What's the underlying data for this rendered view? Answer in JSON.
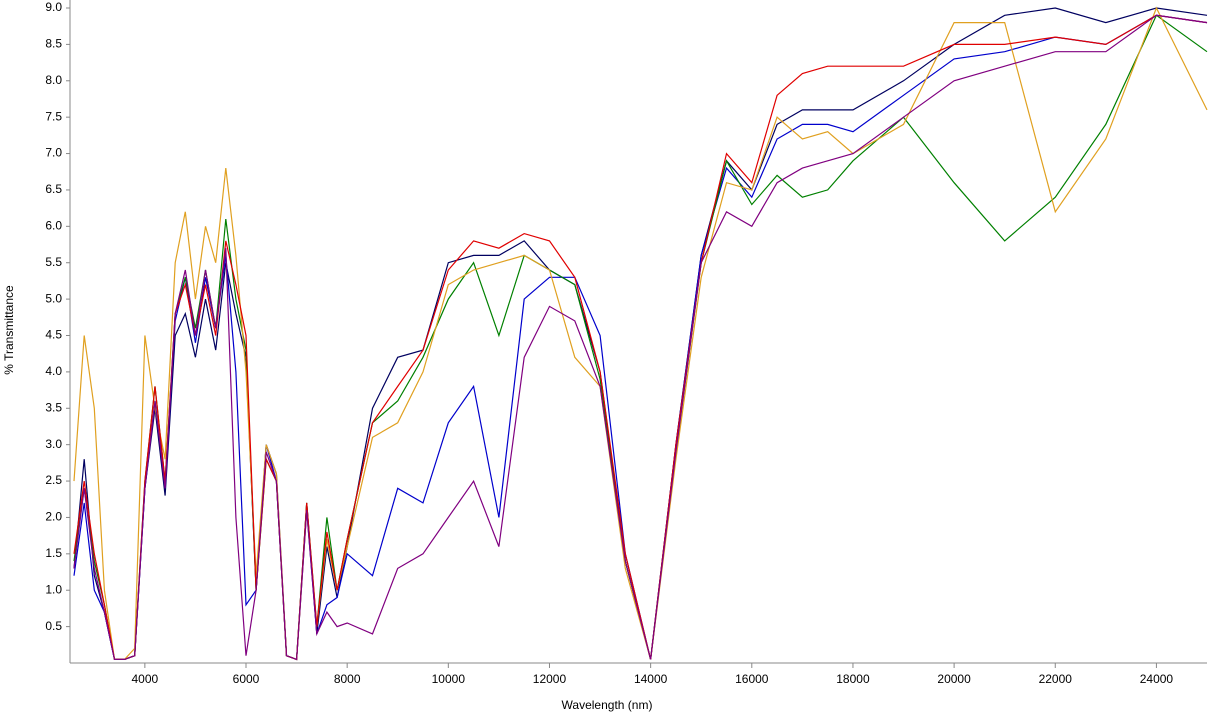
{
  "chart_data": {
    "type": "line",
    "x_label": "Wavelength (nm)",
    "y_label": "% Transmittance",
    "x": [
      2600,
      2800,
      3000,
      3200,
      3400,
      3600,
      3800,
      4000,
      4200,
      4400,
      4600,
      4800,
      5000,
      5200,
      5400,
      5600,
      5800,
      6000,
      6200,
      6400,
      6600,
      6800,
      7000,
      7200,
      7400,
      7600,
      7800,
      8000,
      8500,
      9000,
      9500,
      10000,
      10500,
      11000,
      11500,
      12000,
      12500,
      13000,
      13500,
      14000,
      14500,
      15000,
      15500,
      16000,
      16500,
      17000,
      17500,
      18000,
      19000,
      20000,
      21000,
      22000,
      23000,
      24000,
      25000
    ],
    "series": [
      {
        "color": "#000060",
        "values": [
          1.3,
          2.8,
          1.2,
          0.7,
          0.05,
          0.05,
          0.1,
          2.4,
          3.5,
          2.3,
          4.5,
          4.8,
          4.2,
          5.0,
          4.3,
          5.5,
          4.8,
          4.2,
          1.0,
          3.0,
          2.6,
          0.1,
          0.05,
          2.2,
          0.4,
          1.6,
          0.9,
          1.6,
          3.5,
          4.2,
          4.3,
          5.5,
          5.6,
          5.6,
          5.8,
          5.4,
          5.2,
          4.0,
          1.4,
          0.05,
          3.0,
          5.6,
          6.9,
          6.5,
          7.4,
          7.6,
          7.6,
          7.6,
          8.0,
          8.5,
          8.9,
          9.0,
          8.8,
          9.0,
          8.9
        ]
      },
      {
        "color": "#0000cc",
        "values": [
          1.2,
          2.2,
          1.0,
          0.7,
          0.05,
          0.05,
          0.1,
          2.4,
          3.6,
          2.4,
          4.7,
          5.3,
          4.4,
          5.3,
          4.6,
          5.6,
          4.0,
          0.8,
          1.0,
          3.0,
          2.5,
          0.1,
          0.05,
          2.1,
          0.4,
          0.8,
          0.9,
          1.5,
          1.2,
          2.4,
          2.2,
          3.3,
          3.8,
          2.0,
          5.0,
          5.3,
          5.3,
          4.5,
          1.5,
          0.05,
          3.0,
          5.6,
          6.8,
          6.4,
          7.2,
          7.4,
          7.4,
          7.3,
          7.8,
          8.3,
          8.4,
          8.6,
          8.5,
          8.9,
          8.8
        ]
      },
      {
        "color": "#008000",
        "values": [
          1.4,
          2.4,
          1.4,
          0.8,
          0.05,
          0.05,
          0.1,
          2.5,
          3.8,
          2.5,
          4.8,
          5.3,
          4.6,
          5.4,
          4.6,
          6.1,
          5.0,
          4.3,
          1.0,
          2.8,
          2.5,
          0.1,
          0.05,
          2.2,
          0.5,
          2.0,
          1.0,
          1.7,
          3.3,
          3.6,
          4.2,
          5.0,
          5.5,
          4.5,
          5.6,
          5.4,
          5.2,
          3.9,
          1.4,
          0.05,
          2.9,
          5.5,
          6.9,
          6.3,
          6.7,
          6.4,
          6.5,
          6.9,
          7.5,
          6.6,
          5.8,
          6.4,
          7.4,
          8.9,
          8.4
        ]
      },
      {
        "color": "#e0a020",
        "values": [
          2.5,
          4.5,
          3.5,
          1.0,
          0.05,
          0.05,
          0.2,
          4.5,
          3.5,
          2.8,
          5.5,
          6.2,
          5.0,
          6.0,
          5.5,
          6.8,
          5.6,
          4.0,
          1.2,
          3.0,
          2.6,
          0.1,
          0.05,
          2.1,
          0.5,
          1.7,
          1.0,
          1.6,
          3.1,
          3.3,
          4.0,
          5.2,
          5.4,
          5.5,
          5.6,
          5.4,
          4.2,
          3.8,
          1.3,
          0.05,
          2.8,
          5.3,
          6.6,
          6.5,
          7.5,
          7.2,
          7.3,
          7.0,
          7.4,
          8.8,
          8.8,
          6.2,
          7.2,
          9.0,
          7.6
        ]
      },
      {
        "color": "#e00000",
        "values": [
          1.5,
          2.5,
          1.5,
          0.8,
          0.05,
          0.05,
          0.1,
          2.5,
          3.8,
          2.5,
          4.8,
          5.2,
          4.5,
          5.2,
          4.5,
          5.8,
          5.2,
          4.5,
          1.0,
          2.8,
          2.5,
          0.1,
          0.05,
          2.2,
          0.5,
          1.8,
          1.0,
          1.7,
          3.3,
          3.8,
          4.3,
          5.4,
          5.8,
          5.7,
          5.9,
          5.8,
          5.3,
          4.0,
          1.5,
          0.05,
          3.0,
          5.5,
          7.0,
          6.6,
          7.8,
          8.1,
          8.2,
          8.2,
          8.2,
          8.5,
          8.5,
          8.6,
          8.5,
          8.9,
          8.8
        ]
      },
      {
        "color": "#800080",
        "values": [
          1.3,
          2.4,
          1.3,
          0.7,
          0.05,
          0.05,
          0.1,
          2.4,
          3.6,
          2.4,
          4.8,
          5.4,
          4.5,
          5.4,
          4.6,
          5.7,
          2.0,
          0.1,
          1.0,
          2.9,
          2.5,
          0.1,
          0.05,
          2.1,
          0.4,
          0.7,
          0.5,
          0.55,
          0.4,
          1.3,
          1.5,
          2.0,
          2.5,
          1.6,
          4.2,
          4.9,
          4.7,
          3.8,
          1.4,
          0.05,
          2.9,
          5.5,
          6.2,
          6.0,
          6.6,
          6.8,
          6.9,
          7.0,
          7.5,
          8.0,
          8.2,
          8.4,
          8.4,
          8.9,
          8.8
        ]
      }
    ],
    "xlim": [
      2520,
      25000
    ],
    "xticks": [
      4000,
      6000,
      8000,
      10000,
      12000,
      14000,
      16000,
      18000,
      20000,
      22000,
      24000
    ],
    "ylim": [
      0,
      9.0
    ],
    "yticks": [
      0.5,
      {
        "value": 1,
        "label": "1.0"
      },
      1.5,
      {
        "value": 2,
        "label": "2.0"
      },
      2.5,
      {
        "value": 3,
        "label": "3.0"
      },
      3.5,
      {
        "value": 4,
        "label": "4.0"
      },
      4.5,
      {
        "value": 5,
        "label": "5.0"
      },
      5.5,
      {
        "value": 6,
        "label": "6.0"
      },
      6.5,
      {
        "value": 7,
        "label": "7.0"
      },
      7.5,
      {
        "value": 8,
        "label": "8.0"
      },
      8.5,
      {
        "value": 9,
        "label": "9.0"
      }
    ],
    "grid": false
  }
}
